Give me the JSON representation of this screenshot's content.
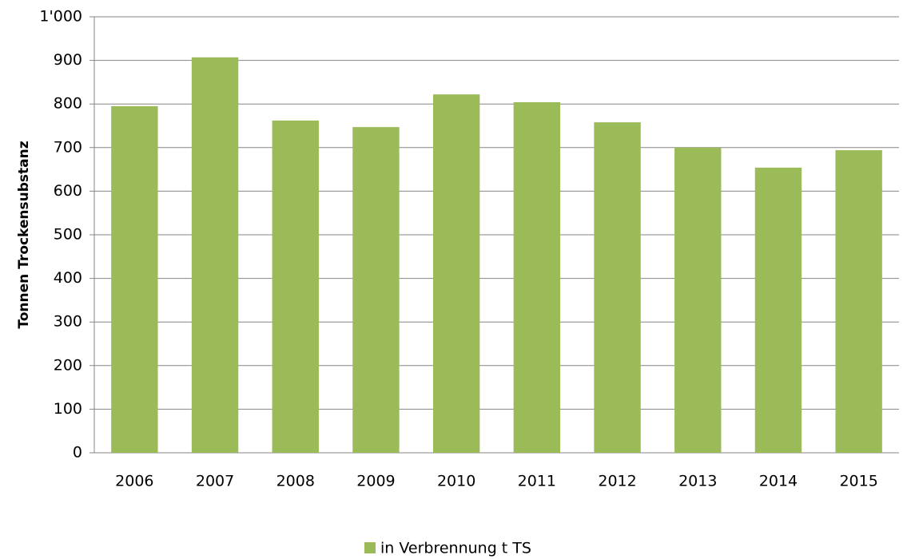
{
  "chart_data": {
    "type": "bar",
    "y_label": "Tonnen Trockensubstanz",
    "categories": [
      "2006",
      "2007",
      "2008",
      "2009",
      "2010",
      "2011",
      "2012",
      "2013",
      "2014",
      "2015"
    ],
    "series": [
      {
        "name": "in Verbrennung t TS",
        "color": "#9bbb59",
        "values": [
          795,
          907,
          762,
          747,
          822,
          804,
          758,
          700,
          654,
          694
        ]
      }
    ],
    "ylim": [
      0,
      1000
    ],
    "yticks": [
      0,
      100,
      200,
      300,
      400,
      500,
      600,
      700,
      800,
      900,
      {
        "value": 1000,
        "label": "1'000"
      }
    ],
    "grid": true,
    "legend": "bottom"
  }
}
